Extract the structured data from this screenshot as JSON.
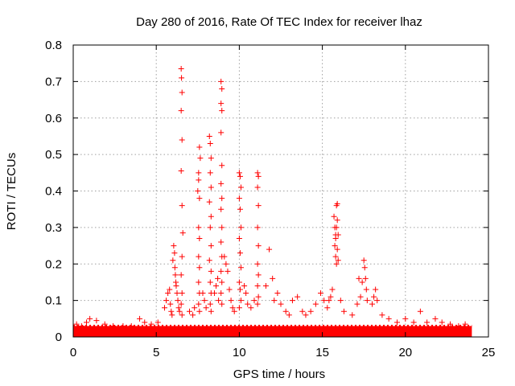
{
  "chart_data": {
    "type": "scatter",
    "title": "Day 280 of 2016, Rate Of TEC Index for receiver lhaz",
    "xlabel": "GPS time / hours",
    "ylabel": "ROTI / TECUs",
    "xlim": [
      0,
      25
    ],
    "ylim": [
      0,
      0.8
    ],
    "xticks": [
      "0",
      "5",
      "10",
      "15",
      "20",
      "25"
    ],
    "yticks": [
      "0",
      "0.1",
      "0.2",
      "0.3",
      "0.4",
      "0.5",
      "0.6",
      "0.7",
      "0.8"
    ],
    "grid": true,
    "marker": "+",
    "color": "#ff0000",
    "background_band": {
      "x_range": [
        0,
        24
      ],
      "y_min": 0.0,
      "y_max": 0.03
    },
    "series": [
      {
        "name": "ROTI",
        "points": [
          [
            0.2,
            0.035
          ],
          [
            0.5,
            0.03
          ],
          [
            0.8,
            0.04
          ],
          [
            1.0,
            0.05
          ],
          [
            1.4,
            0.045
          ],
          [
            1.9,
            0.035
          ],
          [
            2.4,
            0.03
          ],
          [
            3.0,
            0.03
          ],
          [
            3.5,
            0.03
          ],
          [
            4.0,
            0.05
          ],
          [
            4.3,
            0.04
          ],
          [
            4.7,
            0.035
          ],
          [
            5.1,
            0.04
          ],
          [
            5.5,
            0.08
          ],
          [
            5.6,
            0.1
          ],
          [
            5.7,
            0.12
          ],
          [
            5.8,
            0.13
          ],
          [
            5.85,
            0.09
          ],
          [
            5.9,
            0.07
          ],
          [
            5.95,
            0.06
          ],
          [
            6.0,
            0.21
          ],
          [
            6.05,
            0.25
          ],
          [
            6.1,
            0.23
          ],
          [
            6.12,
            0.19
          ],
          [
            6.15,
            0.17
          ],
          [
            6.18,
            0.15
          ],
          [
            6.2,
            0.14
          ],
          [
            6.25,
            0.12
          ],
          [
            6.3,
            0.1
          ],
          [
            6.35,
            0.08
          ],
          [
            6.4,
            0.07
          ],
          [
            6.5,
            0.735
          ],
          [
            6.52,
            0.71
          ],
          [
            6.55,
            0.67
          ],
          [
            6.5,
            0.62
          ],
          [
            6.55,
            0.54
          ],
          [
            6.5,
            0.455
          ],
          [
            6.55,
            0.36
          ],
          [
            6.6,
            0.285
          ],
          [
            6.55,
            0.22
          ],
          [
            6.5,
            0.17
          ],
          [
            6.55,
            0.12
          ],
          [
            6.5,
            0.09
          ],
          [
            6.55,
            0.06
          ],
          [
            7.0,
            0.07
          ],
          [
            7.2,
            0.06
          ],
          [
            7.3,
            0.08
          ],
          [
            7.5,
            0.4
          ],
          [
            7.55,
            0.43
          ],
          [
            7.6,
            0.52
          ],
          [
            7.65,
            0.49
          ],
          [
            7.55,
            0.45
          ],
          [
            7.6,
            0.38
          ],
          [
            7.55,
            0.3
          ],
          [
            7.6,
            0.27
          ],
          [
            7.55,
            0.22
          ],
          [
            7.6,
            0.19
          ],
          [
            7.55,
            0.15
          ],
          [
            7.6,
            0.12
          ],
          [
            7.55,
            0.09
          ],
          [
            7.6,
            0.07
          ],
          [
            7.8,
            0.12
          ],
          [
            7.9,
            0.1
          ],
          [
            8.0,
            0.08
          ],
          [
            8.2,
            0.55
          ],
          [
            8.25,
            0.53
          ],
          [
            8.3,
            0.49
          ],
          [
            8.25,
            0.45
          ],
          [
            8.3,
            0.41
          ],
          [
            8.2,
            0.37
          ],
          [
            8.3,
            0.33
          ],
          [
            8.25,
            0.3
          ],
          [
            8.3,
            0.25
          ],
          [
            8.2,
            0.21
          ],
          [
            8.3,
            0.18
          ],
          [
            8.25,
            0.15
          ],
          [
            8.3,
            0.12
          ],
          [
            8.25,
            0.09
          ],
          [
            8.3,
            0.07
          ],
          [
            8.5,
            0.12
          ],
          [
            8.6,
            0.14
          ],
          [
            8.7,
            0.16
          ],
          [
            8.75,
            0.1
          ],
          [
            8.9,
            0.7
          ],
          [
            8.95,
            0.68
          ],
          [
            8.9,
            0.64
          ],
          [
            8.95,
            0.62
          ],
          [
            8.9,
            0.56
          ],
          [
            8.95,
            0.47
          ],
          [
            8.9,
            0.42
          ],
          [
            8.95,
            0.38
          ],
          [
            8.9,
            0.35
          ],
          [
            8.95,
            0.3
          ],
          [
            8.9,
            0.26
          ],
          [
            8.95,
            0.22
          ],
          [
            8.9,
            0.18
          ],
          [
            8.95,
            0.15
          ],
          [
            8.9,
            0.12
          ],
          [
            8.95,
            0.09
          ],
          [
            9.1,
            0.22
          ],
          [
            9.2,
            0.2
          ],
          [
            9.3,
            0.18
          ],
          [
            9.4,
            0.13
          ],
          [
            9.5,
            0.1
          ],
          [
            9.6,
            0.08
          ],
          [
            9.7,
            0.07
          ],
          [
            10.0,
            0.45
          ],
          [
            10.05,
            0.44
          ],
          [
            10.1,
            0.41
          ],
          [
            10.0,
            0.38
          ],
          [
            10.05,
            0.35
          ],
          [
            10.1,
            0.3
          ],
          [
            10.0,
            0.27
          ],
          [
            10.05,
            0.23
          ],
          [
            10.1,
            0.19
          ],
          [
            10.0,
            0.15
          ],
          [
            10.05,
            0.13
          ],
          [
            10.1,
            0.1
          ],
          [
            10.0,
            0.08
          ],
          [
            10.3,
            0.14
          ],
          [
            10.4,
            0.12
          ],
          [
            10.5,
            0.09
          ],
          [
            10.7,
            0.08
          ],
          [
            10.9,
            0.1
          ],
          [
            11.1,
            0.45
          ],
          [
            11.15,
            0.44
          ],
          [
            11.1,
            0.41
          ],
          [
            11.15,
            0.36
          ],
          [
            11.1,
            0.3
          ],
          [
            11.15,
            0.25
          ],
          [
            11.1,
            0.2
          ],
          [
            11.15,
            0.17
          ],
          [
            11.1,
            0.14
          ],
          [
            11.15,
            0.11
          ],
          [
            11.1,
            0.09
          ],
          [
            11.6,
            0.14
          ],
          [
            11.8,
            0.24
          ],
          [
            12.0,
            0.16
          ],
          [
            12.1,
            0.1
          ],
          [
            12.3,
            0.12
          ],
          [
            12.5,
            0.09
          ],
          [
            12.8,
            0.07
          ],
          [
            13.0,
            0.06
          ],
          [
            13.2,
            0.1
          ],
          [
            13.5,
            0.11
          ],
          [
            13.8,
            0.07
          ],
          [
            14.0,
            0.06
          ],
          [
            14.3,
            0.07
          ],
          [
            14.6,
            0.09
          ],
          [
            14.9,
            0.12
          ],
          [
            15.1,
            0.1
          ],
          [
            15.3,
            0.08
          ],
          [
            15.4,
            0.1
          ],
          [
            15.5,
            0.11
          ],
          [
            15.6,
            0.13
          ],
          [
            15.7,
            0.33
          ],
          [
            15.75,
            0.3
          ],
          [
            15.8,
            0.28
          ],
          [
            15.75,
            0.25
          ],
          [
            15.8,
            0.22
          ],
          [
            15.85,
            0.2
          ],
          [
            15.8,
            0.27
          ],
          [
            15.85,
            0.3
          ],
          [
            15.9,
            0.365
          ],
          [
            15.85,
            0.36
          ],
          [
            15.9,
            0.32
          ],
          [
            15.95,
            0.28
          ],
          [
            15.9,
            0.24
          ],
          [
            15.95,
            0.21
          ],
          [
            16.1,
            0.1
          ],
          [
            16.3,
            0.07
          ],
          [
            16.8,
            0.06
          ],
          [
            17.1,
            0.09
          ],
          [
            17.2,
            0.16
          ],
          [
            17.3,
            0.11
          ],
          [
            17.4,
            0.15
          ],
          [
            17.5,
            0.21
          ],
          [
            17.55,
            0.19
          ],
          [
            17.6,
            0.16
          ],
          [
            17.65,
            0.13
          ],
          [
            17.7,
            0.1
          ],
          [
            18.0,
            0.09
          ],
          [
            18.1,
            0.11
          ],
          [
            18.2,
            0.13
          ],
          [
            18.3,
            0.1
          ],
          [
            18.6,
            0.06
          ],
          [
            19.0,
            0.05
          ],
          [
            19.5,
            0.04
          ],
          [
            20.0,
            0.05
          ],
          [
            20.5,
            0.04
          ],
          [
            20.9,
            0.07
          ],
          [
            21.3,
            0.04
          ],
          [
            21.8,
            0.05
          ],
          [
            22.2,
            0.04
          ],
          [
            22.7,
            0.035
          ],
          [
            23.2,
            0.03
          ],
          [
            23.6,
            0.035
          ]
        ]
      }
    ]
  }
}
